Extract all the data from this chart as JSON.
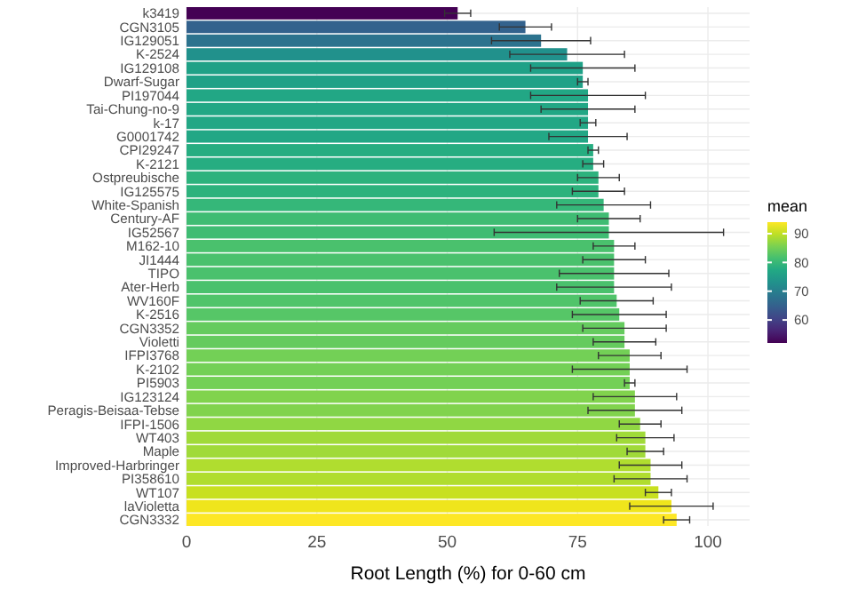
{
  "chart_data": {
    "type": "bar",
    "orientation": "horizontal",
    "xlabel": "Root Length (%) for 0-60 cm",
    "clabel": "mean",
    "categories": [
      "k3419",
      "CGN3105",
      "IG129051",
      "K-2524",
      "IG129108",
      "Dwarf-Sugar",
      "PI197044",
      "Tai-Chung-no-9",
      "k-17",
      "G0001742",
      "CPI29247",
      "K-2121",
      "Ostpreubische",
      "IG125575",
      "White-Spanish",
      "Century-AF",
      "IG52567",
      "M162-10",
      "JI1444",
      "TIPO",
      "Ater-Herb",
      "WV160F",
      "K-2516",
      "CGN3352",
      "Violetti",
      "IFPI3768",
      "K-2102",
      "PI5903",
      "IG123124",
      "Peragis-Beisaa-Tebse",
      "IFPI-1506",
      "WT403",
      "Maple",
      "Improved-Harbringer",
      "PI358610",
      "WT107",
      "laVioletta",
      "CGN3332"
    ],
    "values": [
      52,
      65,
      68,
      73,
      76,
      76,
      77,
      77,
      77,
      77,
      78,
      78,
      79,
      79,
      80,
      81,
      81,
      82,
      82,
      82,
      82,
      82.5,
      83,
      84,
      84,
      85,
      85,
      85,
      86,
      86,
      87,
      88,
      88,
      89,
      89,
      90.5,
      93,
      94
    ],
    "errors": [
      2.5,
      5,
      9.5,
      11,
      10,
      1,
      11,
      9,
      1.5,
      7.5,
      1,
      2,
      4,
      5,
      9,
      6,
      22,
      4,
      6,
      10.5,
      11,
      7,
      9,
      8,
      6,
      6,
      11,
      1,
      8,
      9,
      4,
      5.5,
      3.5,
      6,
      7,
      2.5,
      8,
      2.5
    ],
    "xlim": [
      0,
      108
    ],
    "xticks": [
      0,
      25,
      50,
      75,
      100
    ],
    "clim": [
      52,
      94
    ],
    "cticks": [
      60,
      70,
      80,
      90
    ],
    "grid": true
  }
}
